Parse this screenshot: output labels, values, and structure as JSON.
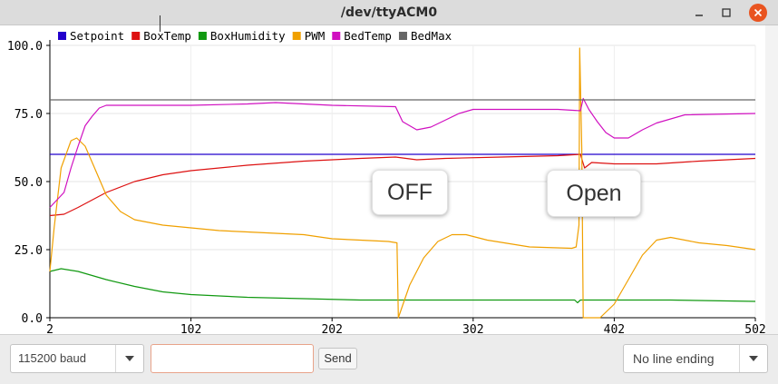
{
  "window": {
    "title": "/dev/ttyACM0"
  },
  "chart_data": {
    "type": "line",
    "xlim": [
      2,
      502
    ],
    "ylim": [
      0,
      100
    ],
    "xticks": [
      "2",
      "102",
      "202",
      "302",
      "402",
      "502"
    ],
    "yticks": [
      "0.0",
      "25.0",
      "50.0",
      "75.0",
      "100.0"
    ],
    "legend_position": "top-left",
    "series": [
      {
        "name": "Setpoint",
        "color": "#2200cc",
        "x": [
          2,
          502
        ],
        "y": [
          60,
          60
        ]
      },
      {
        "name": "BoxTemp",
        "color": "#dd1111",
        "x": [
          2,
          12,
          22,
          42,
          62,
          82,
          102,
          142,
          182,
          222,
          247,
          262,
          282,
          322,
          362,
          378,
          381,
          386,
          402,
          432,
          462,
          502
        ],
        "y": [
          37.5,
          38,
          40.5,
          46,
          50,
          52.5,
          54,
          56,
          57.5,
          58.5,
          59,
          58,
          58.5,
          59,
          59.5,
          60,
          55,
          57,
          56.5,
          56.5,
          57.5,
          58.5
        ]
      },
      {
        "name": "BoxHumidity",
        "color": "#119911",
        "x": [
          2,
          10,
          22,
          42,
          62,
          82,
          102,
          142,
          182,
          222,
          262,
          302,
          342,
          374,
          376,
          378,
          402,
          442,
          502
        ],
        "y": [
          17,
          18,
          17,
          14,
          11.5,
          9.5,
          8.5,
          7.5,
          7,
          6.5,
          6.5,
          6.5,
          6.5,
          6.5,
          5.5,
          6.5,
          6.5,
          6.5,
          6
        ]
      },
      {
        "name": "PWM",
        "color": "#f0a000",
        "x": [
          2,
          5,
          10,
          17,
          21,
          27,
          32,
          42,
          52,
          62,
          72,
          82,
          102,
          122,
          142,
          162,
          182,
          202,
          222,
          242,
          248,
          249,
          257,
          267,
          277,
          287,
          297,
          312,
          342,
          372,
          375,
          377,
          377.5,
          379,
          380,
          382,
          384,
          392,
          402,
          412,
          422,
          432,
          442,
          462,
          482,
          502
        ],
        "y": [
          17,
          33,
          55,
          65,
          66,
          63,
          57,
          45,
          39,
          36,
          35,
          34,
          33,
          32,
          31.5,
          31,
          30.5,
          29,
          28.5,
          28,
          27.5,
          0,
          12,
          22,
          28,
          30.5,
          30.5,
          28.5,
          26,
          25.5,
          26,
          34,
          99,
          62,
          0,
          0,
          0,
          0,
          5,
          14,
          23,
          28.5,
          29.5,
          27.5,
          26.5,
          25
        ]
      },
      {
        "name": "BedTemp",
        "color": "#d010c0",
        "x": [
          2,
          12,
          17,
          22,
          27,
          32,
          37,
          42,
          52,
          102,
          142,
          162,
          202,
          247,
          252,
          262,
          272,
          282,
          292,
          302,
          322,
          362,
          378,
          380,
          384,
          390,
          396,
          402,
          412,
          422,
          432,
          452,
          502
        ],
        "y": [
          40.5,
          46,
          55,
          63,
          70.5,
          74,
          77,
          78,
          78,
          78,
          78.5,
          79,
          78,
          77.5,
          72,
          69,
          70,
          72.5,
          75,
          76.5,
          76.5,
          76.5,
          76,
          80.5,
          76.5,
          72,
          68,
          66,
          66,
          69,
          71.5,
          74.5,
          75
        ]
      },
      {
        "name": "BedMax",
        "color": "#666666",
        "x": [
          2,
          502
        ],
        "y": [
          80,
          80
        ]
      }
    ]
  },
  "annotations": {
    "off": "OFF",
    "open": "Open"
  },
  "controls": {
    "baud_value": "115200 baud",
    "send_label": "Send",
    "input_value": "",
    "line_ending_value": "No line ending"
  }
}
